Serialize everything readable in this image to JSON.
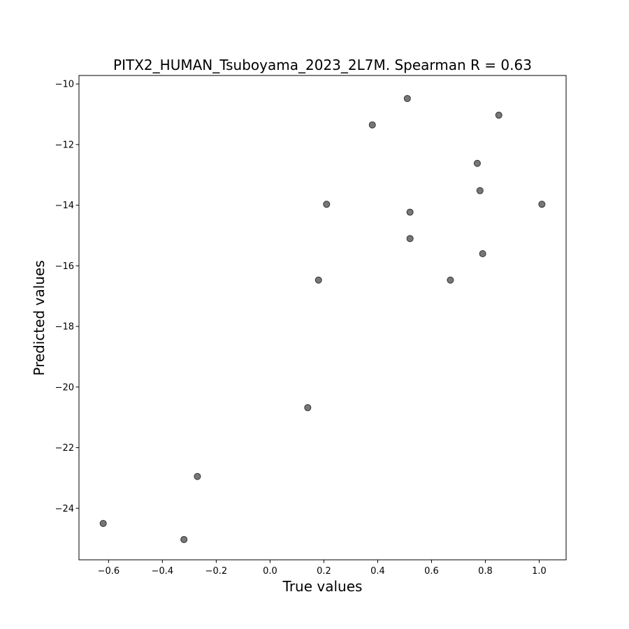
{
  "chart_data": {
    "type": "scatter",
    "title": "PITX2_HUMAN_Tsuboyama_2023_2L7M. Spearman R = 0.63",
    "xlabel": "True values",
    "ylabel": "Predicted values",
    "xlim": [
      -0.71,
      1.1
    ],
    "ylim": [
      -25.7,
      -9.72
    ],
    "x_ticks": [
      -0.6,
      -0.4,
      -0.2,
      0.0,
      0.2,
      0.4,
      0.6,
      0.8,
      1.0
    ],
    "x_tick_labels": [
      "−0.6",
      "−0.4",
      "−0.2",
      "0.0",
      "0.2",
      "0.4",
      "0.6",
      "0.8",
      "1.0"
    ],
    "y_ticks": [
      -24,
      -22,
      -20,
      -18,
      -16,
      -14,
      -12,
      -10
    ],
    "y_tick_labels": [
      "−24",
      "−22",
      "−20",
      "−18",
      "−16",
      "−14",
      "−12",
      "−10"
    ],
    "grid": false,
    "marker_color": "#555555",
    "points": [
      {
        "x": -0.62,
        "y": -24.5
      },
      {
        "x": -0.32,
        "y": -25.03
      },
      {
        "x": -0.27,
        "y": -22.95
      },
      {
        "x": 0.14,
        "y": -20.68
      },
      {
        "x": 0.18,
        "y": -16.47
      },
      {
        "x": 0.21,
        "y": -13.97
      },
      {
        "x": 0.38,
        "y": -11.35
      },
      {
        "x": 0.51,
        "y": -10.48
      },
      {
        "x": 0.52,
        "y": -14.23
      },
      {
        "x": 0.52,
        "y": -15.1
      },
      {
        "x": 0.67,
        "y": -16.47
      },
      {
        "x": 0.77,
        "y": -12.62
      },
      {
        "x": 0.78,
        "y": -13.52
      },
      {
        "x": 0.79,
        "y": -15.6
      },
      {
        "x": 0.85,
        "y": -11.03
      },
      {
        "x": 1.01,
        "y": -13.97
      }
    ]
  }
}
